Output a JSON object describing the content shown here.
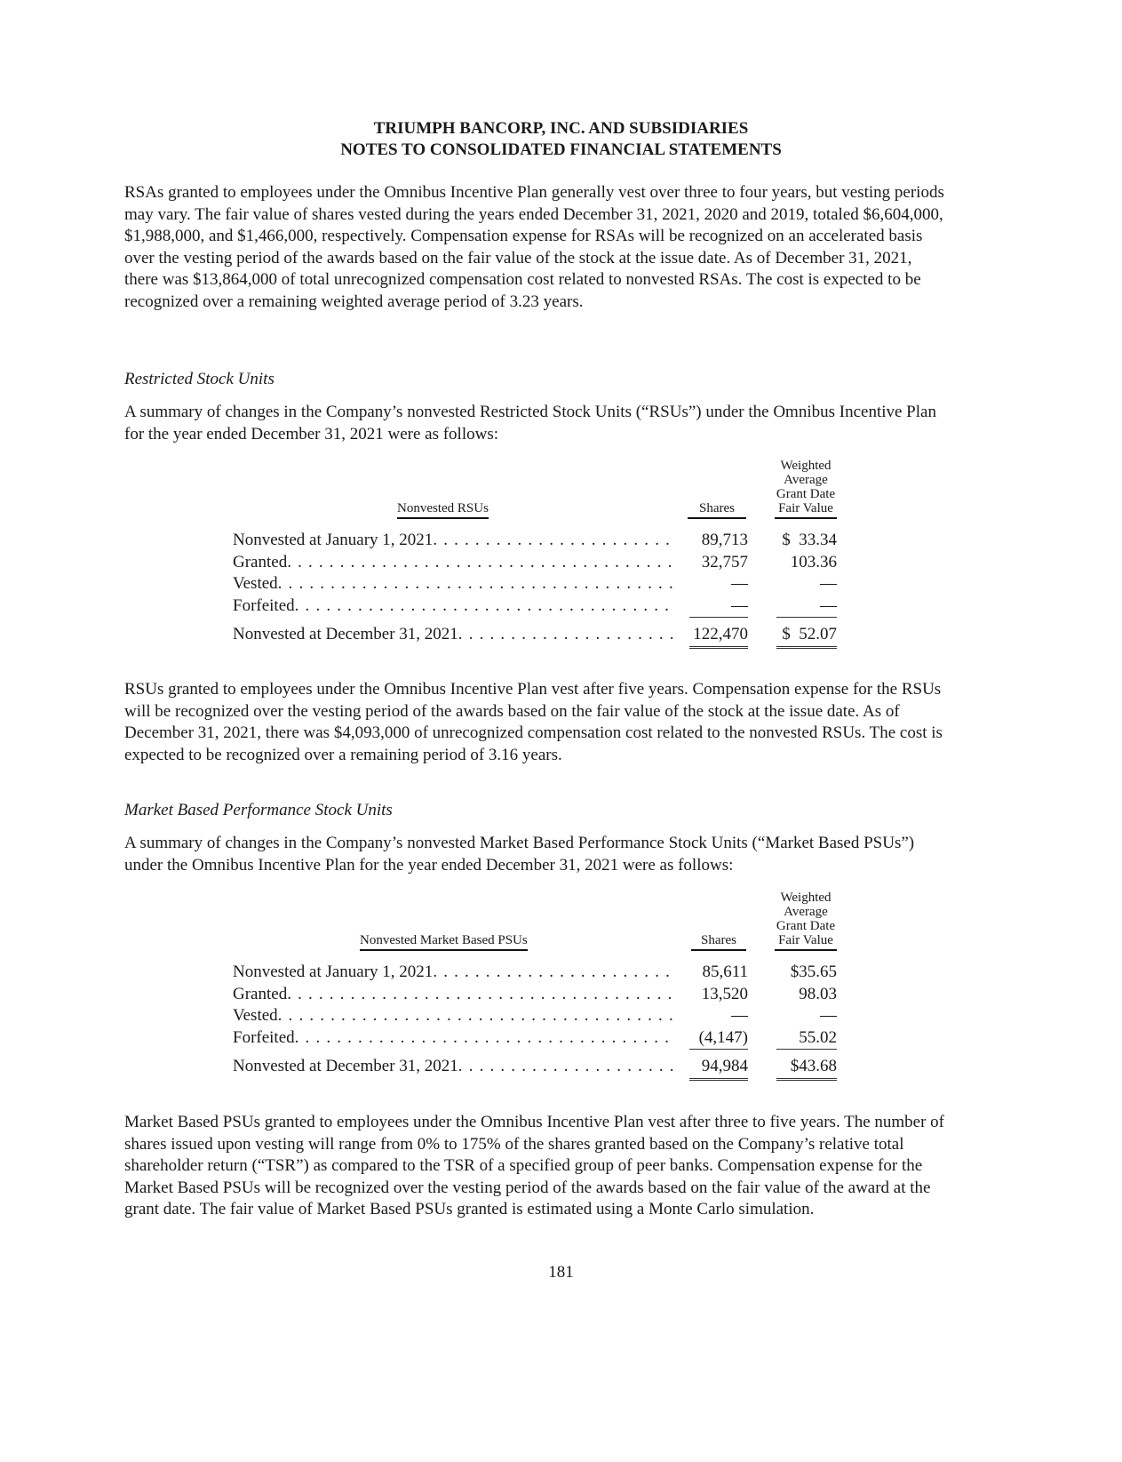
{
  "header": {
    "line1": "TRIUMPH BANCORP, INC. AND SUBSIDIARIES",
    "line2": "NOTES TO CONSOLIDATED FINANCIAL STATEMENTS"
  },
  "para1": "RSAs granted to employees under the Omnibus Incentive Plan generally vest over three to four years, but vesting periods may vary. The fair value of shares vested during the years ended December 31, 2021, 2020 and 2019, totaled $6,604,000, $1,988,000, and $1,466,000, respectively. Compensation expense for RSAs will be recognized on an accelerated basis over the vesting period of the awards based on the fair value of the stock at the issue date. As of December 31, 2021, there was $13,864,000 of total unrecognized compensation cost related to nonvested RSAs. The cost is expected to be recognized over a remaining weighted average period of 3.23 years.",
  "rsu": {
    "heading": "Restricted Stock Units",
    "intro": "A summary of changes in the Company’s nonvested Restricted Stock Units (“RSUs”) under the Omnibus Incentive Plan for the year ended December 31, 2021 were as follows:",
    "table": {
      "col_label": "Nonvested RSUs",
      "col_shares": "Shares",
      "col_fv": [
        "Weighted",
        "Average",
        "Grant Date",
        "Fair Value"
      ],
      "rows": [
        {
          "label": "Nonvested at January 1, 2021",
          "shares": "89,713",
          "fv": "$  33.34"
        },
        {
          "label": "Granted",
          "shares": "32,757",
          "fv": "103.36"
        },
        {
          "label": "Vested",
          "shares": "—",
          "fv": "—"
        },
        {
          "label": "Forfeited",
          "shares": "—",
          "fv": "—"
        }
      ],
      "total": {
        "label": "Nonvested at December 31, 2021",
        "shares": "122,470",
        "fv": "$  52.07"
      }
    },
    "after": "RSUs granted to employees under the Omnibus Incentive Plan vest after five years. Compensation expense for the RSUs will be recognized over the vesting period of the awards based on the fair value of the stock at the issue date. As of December 31, 2021, there was $4,093,000 of unrecognized compensation cost related to the nonvested RSUs. The cost is expected to be recognized over a remaining period of 3.16 years."
  },
  "psu": {
    "heading": "Market Based Performance Stock Units",
    "intro": "A summary of changes in the Company’s nonvested Market Based Performance Stock Units (“Market Based PSUs”) under the Omnibus Incentive Plan for the year ended December 31, 2021 were as follows:",
    "table": {
      "col_label": "Nonvested Market Based PSUs",
      "col_shares": "Shares",
      "col_fv": [
        "Weighted",
        "Average",
        "Grant Date",
        "Fair Value"
      ],
      "rows": [
        {
          "label": "Nonvested at January 1, 2021",
          "shares": "85,611",
          "fv": "$35.65"
        },
        {
          "label": "Granted",
          "shares": "13,520",
          "fv": "98.03"
        },
        {
          "label": "Vested",
          "shares": "—",
          "fv": "—"
        },
        {
          "label": "Forfeited",
          "shares": "(4,147)",
          "fv": "55.02"
        }
      ],
      "total": {
        "label": "Nonvested at December 31, 2021",
        "shares": "94,984",
        "fv": "$43.68"
      }
    },
    "after": "Market Based PSUs granted to employees under the Omnibus Incentive Plan vest after three to five years. The number of shares issued upon vesting will range from 0% to 175% of the shares granted based on the Company’s relative total shareholder return (“TSR”) as compared to the TSR of a specified group of peer banks. Compensation expense for the Market Based PSUs will be recognized over the vesting period of the awards based on the fair value of the award at the grant date. The fair value of Market Based PSUs granted is estimated using a Monte Carlo simulation."
  },
  "page_number": "181"
}
